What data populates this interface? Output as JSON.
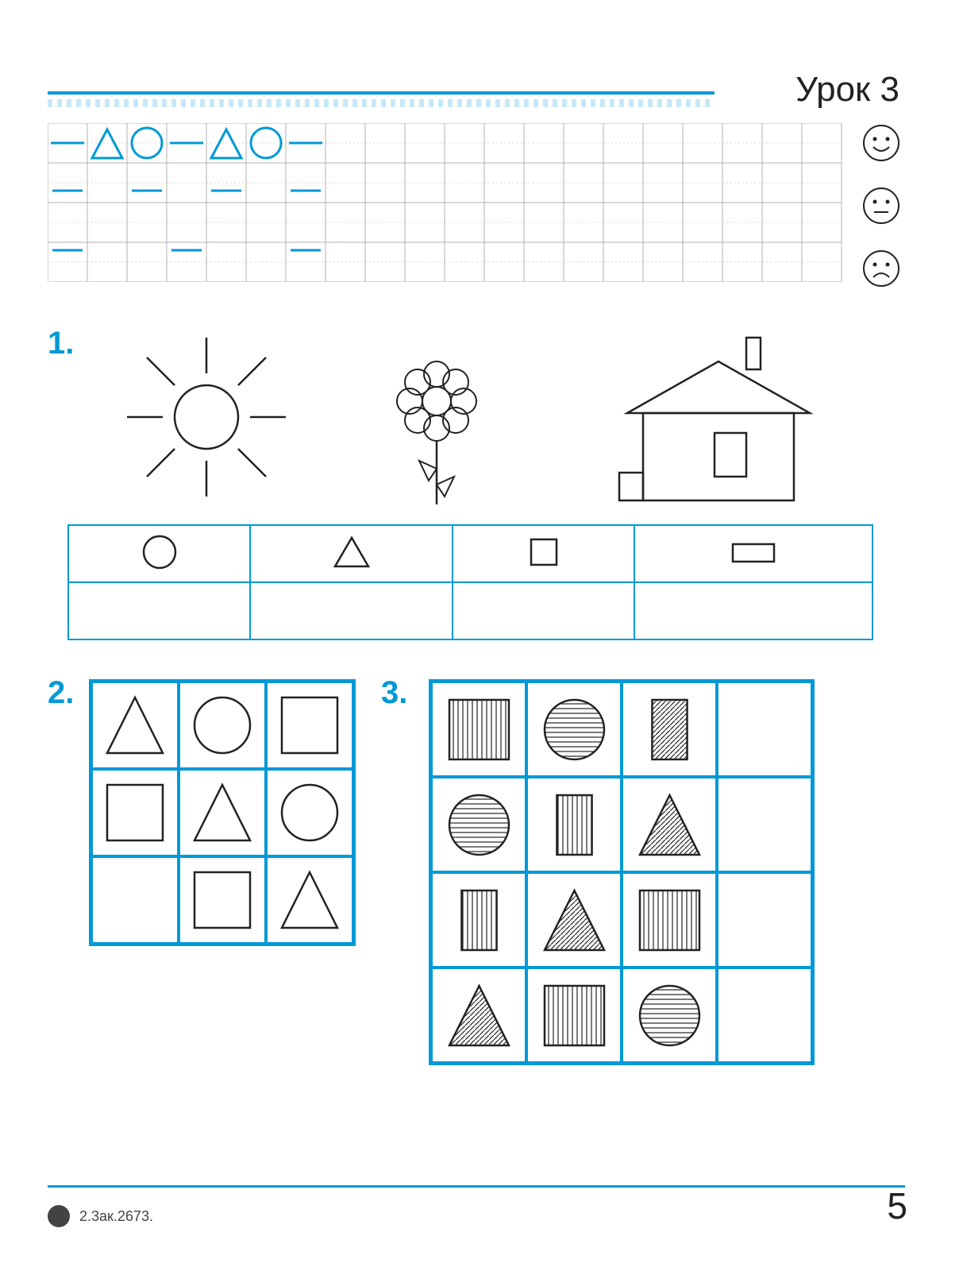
{
  "header": {
    "title": "Урок 3",
    "rule_color": "#0099d6"
  },
  "writing_grid": {
    "cols": 20,
    "rows": 4,
    "cell_size": 50,
    "grid_color": "#b0b0b0",
    "stroke_color": "#0099d6",
    "pattern_row1": [
      "dash",
      "triangle",
      "circle",
      "dash",
      "triangle",
      "circle",
      "dash"
    ],
    "guide_dash_cells_row3": [
      0,
      2,
      4,
      6
    ],
    "guide_dash_cells_row4": [
      0,
      3,
      6
    ]
  },
  "faces": [
    {
      "mood": "happy"
    },
    {
      "mood": "neutral"
    },
    {
      "mood": "sad"
    }
  ],
  "exercise1": {
    "number": "1.",
    "drawings": [
      "sun",
      "flower",
      "house"
    ],
    "table_shapes": [
      "circle",
      "triangle",
      "square",
      "rectangle"
    ]
  },
  "exercise2": {
    "number": "2.",
    "grid": {
      "cols": 3,
      "rows": 3,
      "cells": [
        [
          "triangle",
          "circle",
          "square"
        ],
        [
          "square",
          "triangle",
          "circle"
        ],
        [
          "",
          "square",
          "triangle"
        ]
      ]
    }
  },
  "exercise3": {
    "number": "3.",
    "grid": {
      "cols": 4,
      "rows": 4,
      "cells": [
        [
          {
            "s": "square",
            "p": "vert"
          },
          {
            "s": "circle",
            "p": "horiz"
          },
          {
            "s": "rect",
            "p": "diag"
          },
          {
            "s": "",
            "p": ""
          }
        ],
        [
          {
            "s": "circle",
            "p": "horiz"
          },
          {
            "s": "rect",
            "p": "vert"
          },
          {
            "s": "triangle",
            "p": "diag"
          },
          {
            "s": "",
            "p": ""
          }
        ],
        [
          {
            "s": "rect",
            "p": "vert"
          },
          {
            "s": "triangle",
            "p": "diag"
          },
          {
            "s": "square",
            "p": "vert"
          },
          {
            "s": "",
            "p": ""
          }
        ],
        [
          {
            "s": "triangle",
            "p": "diag"
          },
          {
            "s": "square",
            "p": "vert"
          },
          {
            "s": "circle",
            "p": "horiz"
          },
          {
            "s": "",
            "p": ""
          }
        ]
      ]
    }
  },
  "footer": {
    "code": "2.3ак.2673.",
    "page_number": "5"
  },
  "colors": {
    "accent": "#0099d6",
    "line": "#222222",
    "grid": "#b0b0b0",
    "bg": "#ffffff"
  }
}
